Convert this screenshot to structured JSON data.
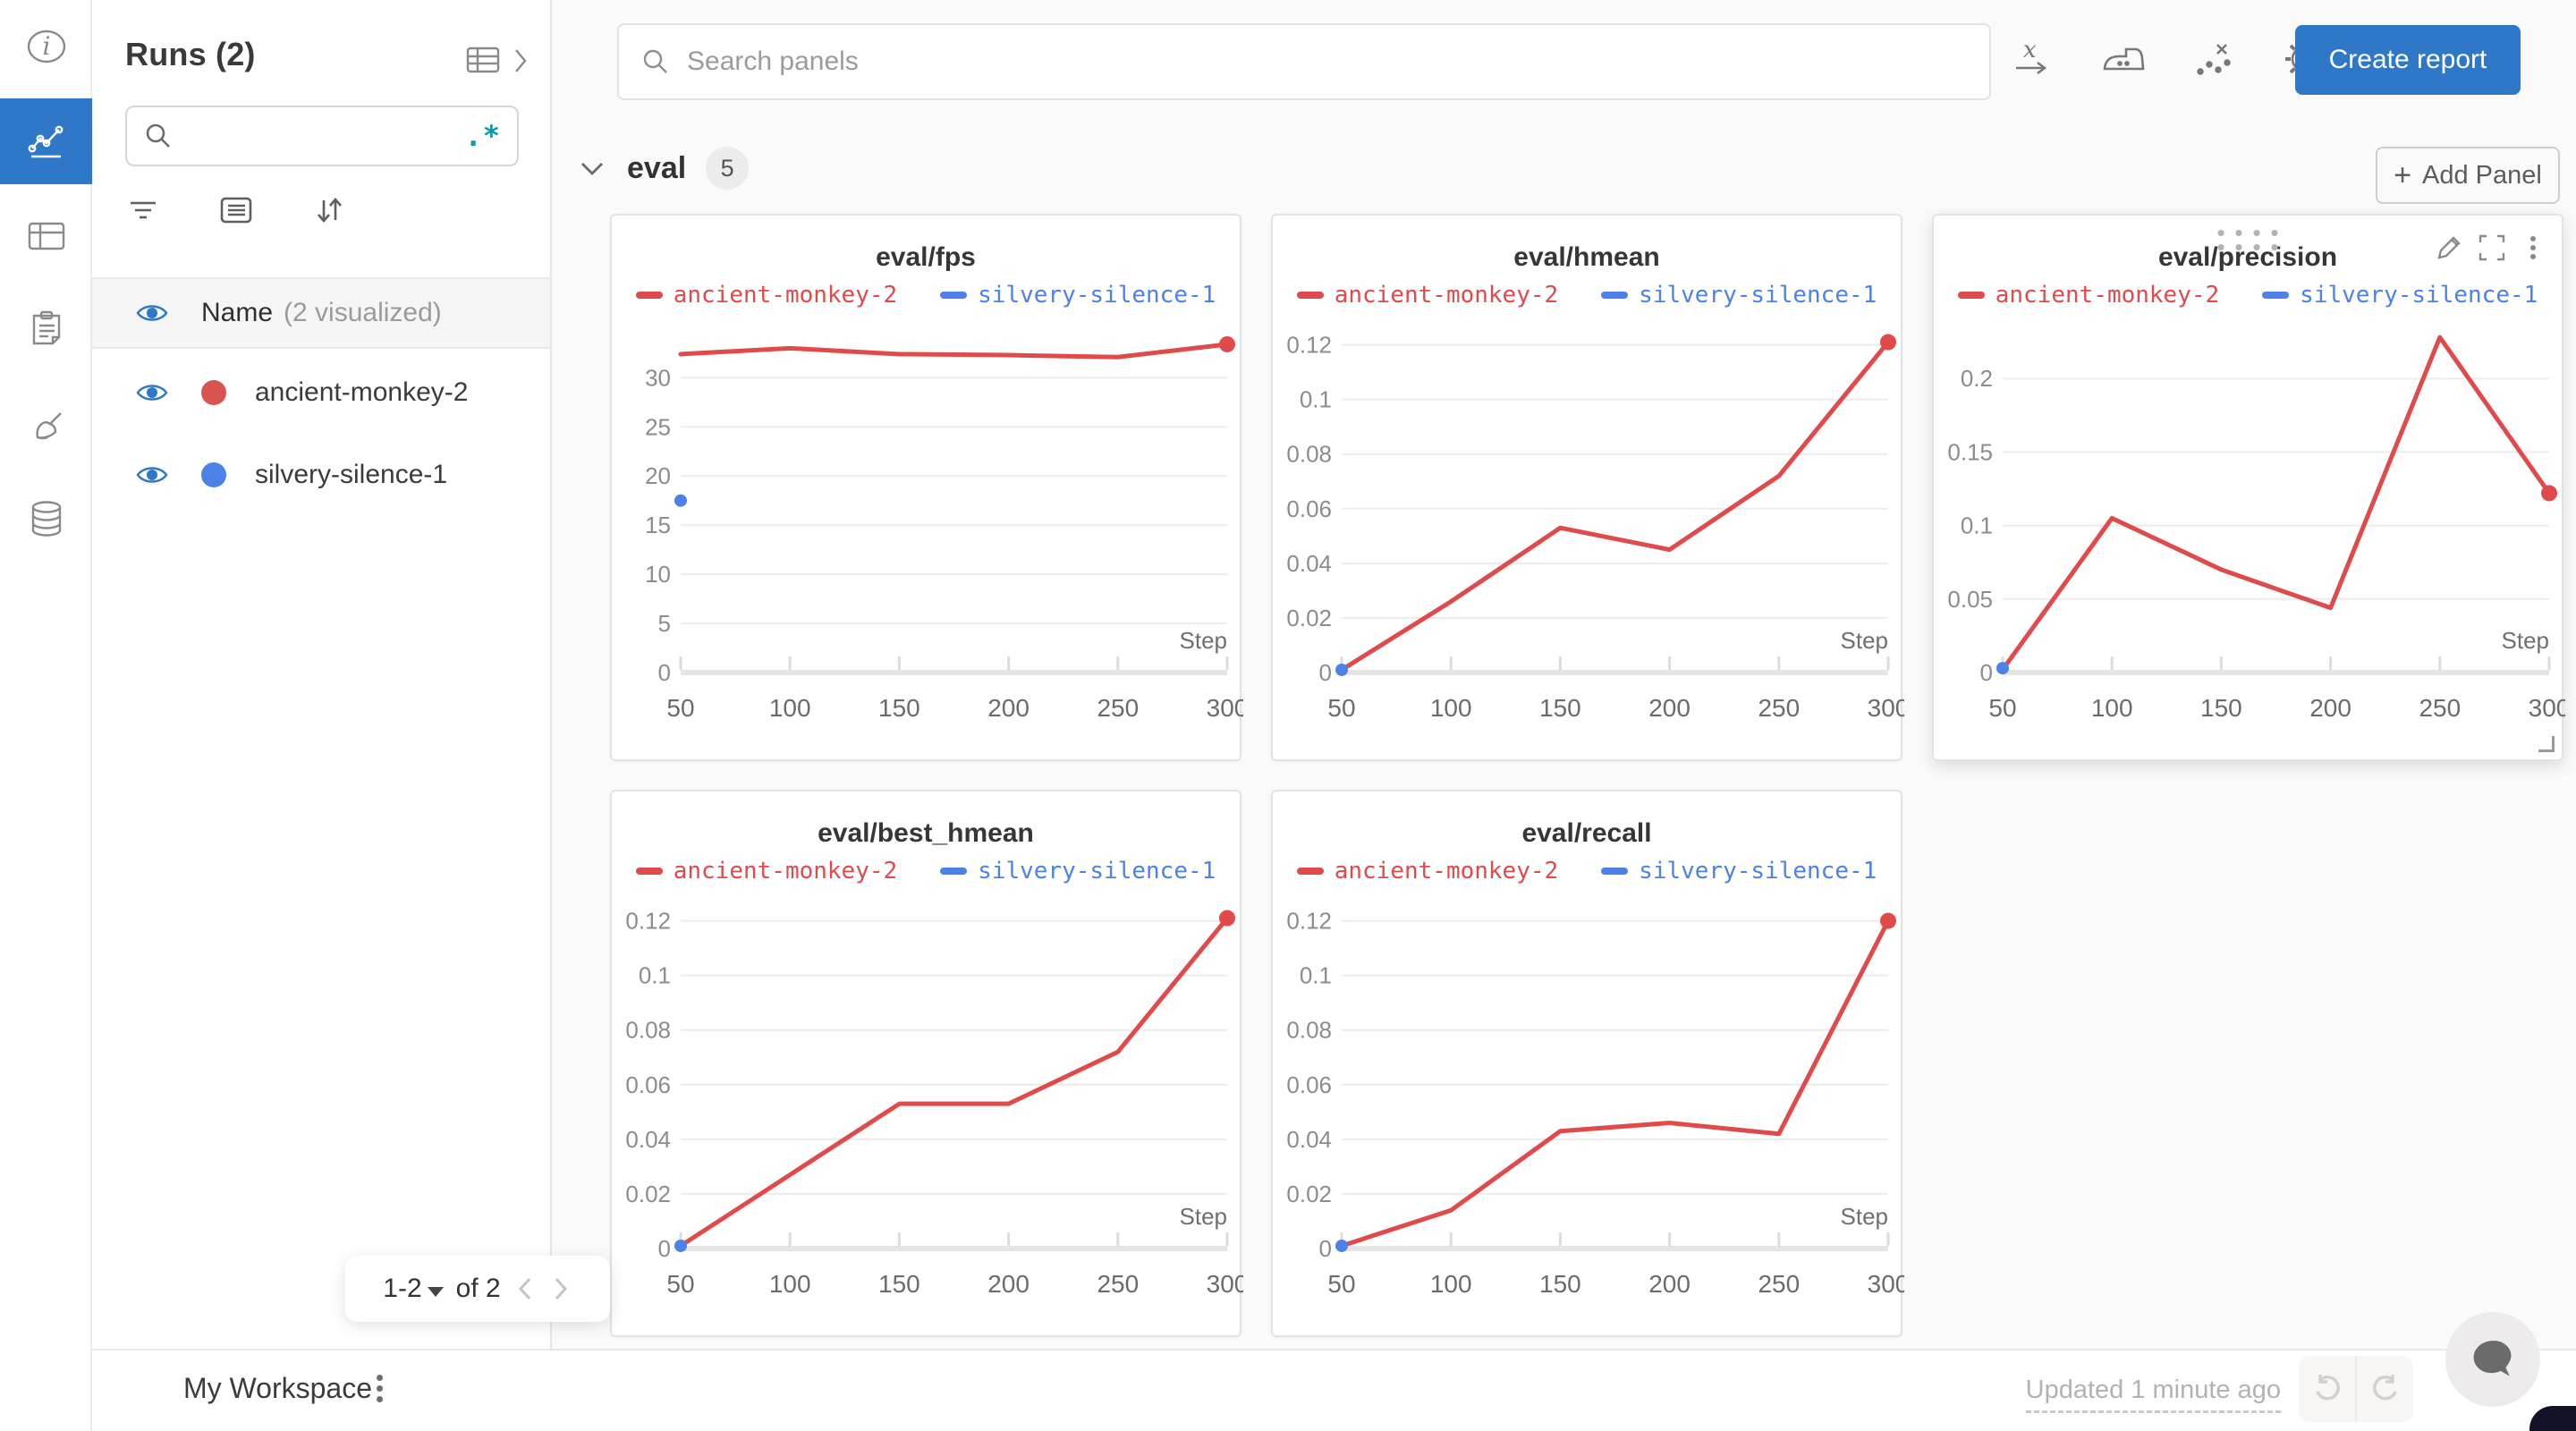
{
  "colors": {
    "accent_blue": "#2e78c7",
    "run_red": "#e04a4a",
    "run_red_dot": "#d9534f",
    "run_blue": "#4c82e8",
    "regex_teal": "#0a9bab"
  },
  "left_rail": {
    "items": [
      {
        "name": "info",
        "active": false
      },
      {
        "name": "charts",
        "active": true
      },
      {
        "name": "tables",
        "active": false
      },
      {
        "name": "notes",
        "active": false
      },
      {
        "name": "sweeps",
        "active": false
      },
      {
        "name": "artifacts",
        "active": false
      }
    ]
  },
  "sidebar": {
    "title": "Runs (2)",
    "search": {
      "value": "",
      "placeholder": "",
      "regex_label": ".*"
    },
    "list_header": {
      "name": "Name",
      "visualized": "(2 visualized)"
    },
    "runs": [
      {
        "name": "ancient-monkey-2",
        "color": "#d9534f",
        "visible": true
      },
      {
        "name": "silvery-silence-1",
        "color": "#4c82e8",
        "visible": true
      }
    ],
    "pagination": {
      "range": "1-2",
      "of": "of 2"
    }
  },
  "topbar": {
    "search_placeholder": "Search panels",
    "create_report": "Create report",
    "icons": [
      "x-axis",
      "smoothing",
      "outliers",
      "settings"
    ]
  },
  "section": {
    "label": "eval",
    "count": "5",
    "add_panel": "Add Panel"
  },
  "chart_data": [
    {
      "type": "line",
      "title": "eval/fps",
      "xlabel": "Step",
      "grid": true,
      "legend_position": "top",
      "x": [
        50,
        100,
        150,
        200,
        250,
        300
      ],
      "series": [
        {
          "name": "ancient-monkey-2",
          "color": "#e04a4a",
          "values": [
            32.4,
            33.0,
            32.4,
            32.3,
            32.1,
            33.4
          ],
          "end_dot": true
        },
        {
          "name": "silvery-silence-1",
          "color": "#4c82e8",
          "points": [
            [
              50,
              17.5
            ]
          ]
        }
      ],
      "y_ticks": [
        0,
        5,
        10,
        15,
        20,
        25,
        30
      ],
      "ylim": [
        0,
        36.4
      ],
      "hovered": false
    },
    {
      "type": "line",
      "title": "eval/hmean",
      "xlabel": "Step",
      "grid": true,
      "legend_position": "top",
      "x": [
        50,
        100,
        150,
        200,
        250,
        300
      ],
      "series": [
        {
          "name": "ancient-monkey-2",
          "color": "#e04a4a",
          "values": [
            0.001,
            0.026,
            0.053,
            0.045,
            0.072,
            0.121
          ],
          "end_dot": true
        },
        {
          "name": "silvery-silence-1",
          "color": "#4c82e8",
          "points": [
            [
              50,
              0.001
            ]
          ]
        }
      ],
      "y_ticks": [
        0,
        0.02,
        0.04,
        0.06,
        0.08,
        0.1,
        0.12
      ],
      "ylim": [
        0,
        0.131
      ],
      "hovered": false
    },
    {
      "type": "line",
      "title": "eval/precision",
      "xlabel": "Step",
      "grid": true,
      "legend_position": "top",
      "x": [
        50,
        100,
        150,
        200,
        250,
        300
      ],
      "series": [
        {
          "name": "ancient-monkey-2",
          "color": "#e04a4a",
          "values": [
            0.002,
            0.105,
            0.07,
            0.044,
            0.228,
            0.122
          ],
          "end_dot": true
        },
        {
          "name": "silvery-silence-1",
          "color": "#4c82e8",
          "points": [
            [
              50,
              0.003
            ]
          ]
        }
      ],
      "y_ticks": [
        0,
        0.05,
        0.1,
        0.15,
        0.2
      ],
      "ylim": [
        0,
        0.2433
      ],
      "hovered": true
    },
    {
      "type": "line",
      "title": "eval/best_hmean",
      "xlabel": "Step",
      "grid": true,
      "legend_position": "top",
      "x": [
        50,
        100,
        150,
        200,
        250,
        300
      ],
      "series": [
        {
          "name": "ancient-monkey-2",
          "color": "#e04a4a",
          "values": [
            0.001,
            0.027,
            0.053,
            0.053,
            0.072,
            0.121
          ],
          "end_dot": true
        },
        {
          "name": "silvery-silence-1",
          "color": "#4c82e8",
          "points": [
            [
              50,
              0.001
            ]
          ]
        }
      ],
      "y_ticks": [
        0,
        0.02,
        0.04,
        0.06,
        0.08,
        0.1,
        0.12
      ],
      "ylim": [
        0,
        0.131
      ],
      "hovered": false
    },
    {
      "type": "line",
      "title": "eval/recall",
      "xlabel": "Step",
      "grid": true,
      "legend_position": "top",
      "x": [
        50,
        100,
        150,
        200,
        250,
        300
      ],
      "series": [
        {
          "name": "ancient-monkey-2",
          "color": "#e04a4a",
          "values": [
            0.001,
            0.014,
            0.043,
            0.046,
            0.042,
            0.12
          ],
          "end_dot": true
        },
        {
          "name": "silvery-silence-1",
          "color": "#4c82e8",
          "points": [
            [
              50,
              0.001
            ]
          ]
        }
      ],
      "y_ticks": [
        0,
        0.02,
        0.04,
        0.06,
        0.08,
        0.1,
        0.12
      ],
      "ylim": [
        0,
        0.131
      ],
      "hovered": false
    }
  ],
  "footer": {
    "workspace": "My Workspace",
    "updated": "Updated 1 minute ago"
  }
}
